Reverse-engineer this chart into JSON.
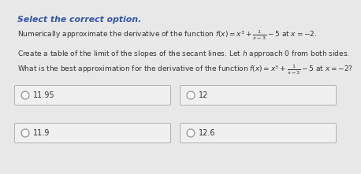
{
  "title": "Select the correct option.",
  "line1_pre": "Numerically approximate the derivative of the function ",
  "line1_math": "$f(x) = x^3 + \\frac{1}{x-3} - 5$",
  "line1_post": " at $x = -2$.",
  "line2": "Create a table of the limit of the slopes of the secant lines. Let $h$ approach 0 from both sides.",
  "line3_pre": "What is the best approximation for the derivative of the function ",
  "line3_math": "$f(x) = x^3 + \\frac{1}{x-3} - 5$",
  "line3_post": " at $x = -2$?",
  "options": [
    "11.95",
    "12",
    "11.9",
    "12.6"
  ],
  "bg_color": "#e8e8e8",
  "box_facecolor": "#f0f0f0",
  "box_edgecolor": "#b0b0b0",
  "title_color": "#3355aa",
  "text_color": "#333333",
  "radio_edge": "#888888",
  "radio_face": "#ffffff"
}
